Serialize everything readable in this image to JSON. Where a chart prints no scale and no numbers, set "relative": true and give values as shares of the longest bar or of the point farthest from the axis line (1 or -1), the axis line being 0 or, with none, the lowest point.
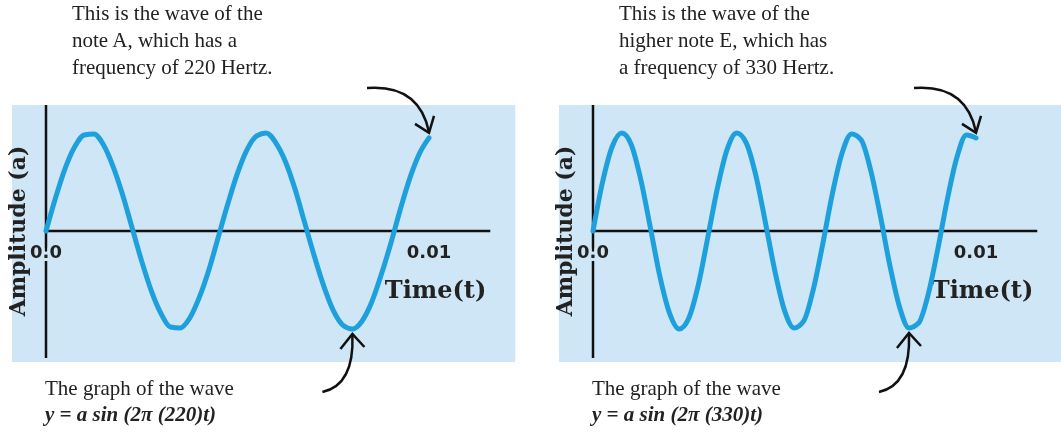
{
  "chart_data": [
    {
      "type": "line",
      "xlabel": "Time(t)",
      "ylabel": "Amplitude (a)",
      "relative": true,
      "xlim": [
        0,
        0.0116
      ],
      "xticks": [
        {
          "value": 0,
          "label": "0.0"
        },
        0.01
      ],
      "x": [
        0,
        0.00025,
        0.0005,
        0.00075,
        0.001,
        0.00125,
        0.0015,
        0.00175,
        0.002,
        0.00225,
        0.0025,
        0.00275,
        0.003,
        0.00325,
        0.0035,
        0.00375,
        0.004,
        0.00425,
        0.0045,
        0.00475,
        0.005,
        0.00525,
        0.0055,
        0.00575,
        0.006,
        0.00625,
        0.0065,
        0.00675,
        0.007,
        0.00725,
        0.0075,
        0.00775,
        0.008,
        0.00825,
        0.0085,
        0.00875,
        0.009,
        0.00925,
        0.0095,
        0.00975,
        0.01
      ],
      "series": [
        {
          "color": "#1ea0dc",
          "values": [
            0,
            0.34,
            0.64,
            0.86,
            0.98,
            0.99,
            0.88,
            0.66,
            0.37,
            0.03,
            -0.31,
            -0.61,
            -0.84,
            -0.98,
            -0.99,
            -0.89,
            -0.68,
            -0.4,
            -0.06,
            0.28,
            0.59,
            0.83,
            0.97,
            1,
            0.9,
            0.71,
            0.43,
            0.09,
            -0.25,
            -0.56,
            -0.81,
            -0.96,
            -1,
            -0.92,
            -0.73,
            -0.45,
            -0.13,
            0.22,
            0.54,
            0.79,
            0.95
          ]
        }
      ],
      "annotations": [
        "This is the wave of the\nnote A, which has a\nfrequency of 220 Hertz.",
        "The graph of the wave\ny = a sin (2π (220)t)"
      ]
    },
    {
      "type": "line",
      "xlabel": "Time(t)",
      "ylabel": "Amplitude (a)",
      "relative": true,
      "xlim": [
        0,
        0.0116
      ],
      "xticks": [
        {
          "value": 0,
          "label": "0.0"
        },
        0.01
      ],
      "x": [
        0,
        0.00025,
        0.0005,
        0.00075,
        0.001,
        0.00125,
        0.0015,
        0.00175,
        0.002,
        0.00225,
        0.0025,
        0.00275,
        0.003,
        0.00325,
        0.0035,
        0.00375,
        0.004,
        0.00425,
        0.0045,
        0.00475,
        0.005,
        0.00525,
        0.0055,
        0.00575,
        0.006,
        0.00625,
        0.0065,
        0.00675,
        0.007,
        0.00725,
        0.0075,
        0.00775,
        0.008,
        0.00825,
        0.0085,
        0.00875,
        0.009,
        0.00925,
        0.0095,
        0.00975,
        0.01
      ],
      "series": [
        {
          "color": "#1ea0dc",
          "values": [
            0,
            0.5,
            0.86,
            1,
            0.88,
            0.52,
            0.03,
            -0.47,
            -0.84,
            -1,
            -0.89,
            -0.55,
            -0.06,
            0.44,
            0.83,
            1,
            0.9,
            0.57,
            0.09,
            -0.41,
            -0.81,
            -0.99,
            -0.92,
            -0.6,
            -0.13,
            0.38,
            0.79,
            0.99,
            0.93,
            0.62,
            0.16,
            -0.35,
            -0.77,
            -0.99,
            -0.94,
            -0.65,
            -0.19,
            0.32,
            0.75,
            0.98,
            0.95
          ]
        }
      ],
      "annotations": [
        "This is the wave of the\nhigher note E, which has\na frequency of 330 Hertz.",
        "The graph of the wave\ny = a sin (2π (330)t)"
      ]
    }
  ]
}
